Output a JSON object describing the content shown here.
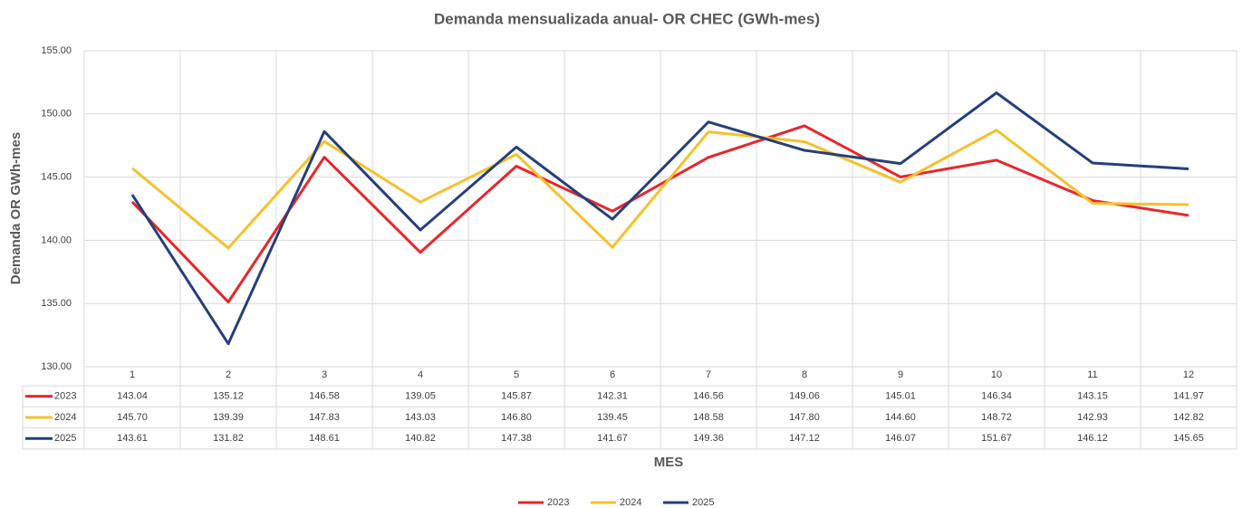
{
  "chart_data": {
    "type": "line",
    "title": "Demanda mensualizada anual- OR CHEC (GWh-mes)",
    "x_label": "MES",
    "y_label": "Demanda OR GWh-mes",
    "categories": [
      "1",
      "2",
      "3",
      "4",
      "5",
      "6",
      "7",
      "8",
      "9",
      "10",
      "11",
      "12"
    ],
    "series": [
      {
        "name": "2023",
        "color": "#e8262b",
        "values": [
          143.04,
          135.12,
          146.58,
          139.05,
          145.87,
          142.31,
          146.56,
          149.06,
          145.01,
          146.34,
          143.15,
          141.97
        ],
        "value_labels": [
          "143.04",
          "135.12",
          "146.58",
          "139.05",
          "145.87",
          "142.31",
          "146.56",
          "149.06",
          "145.01",
          "146.34",
          "143.15",
          "141.97"
        ]
      },
      {
        "name": "2024",
        "color": "#f5c12c",
        "values": [
          145.7,
          139.39,
          147.83,
          143.03,
          146.8,
          139.45,
          148.58,
          147.8,
          144.6,
          148.72,
          142.93,
          142.82
        ],
        "value_labels": [
          "145.70",
          "139.39",
          "147.83",
          "143.03",
          "146.80",
          "139.45",
          "148.58",
          "147.80",
          "144.60",
          "148.72",
          "142.93",
          "142.82"
        ]
      },
      {
        "name": "2025",
        "color": "#24407a",
        "values": [
          143.61,
          131.82,
          148.61,
          140.82,
          147.38,
          141.67,
          149.36,
          147.12,
          146.07,
          151.67,
          146.12,
          145.65
        ],
        "value_labels": [
          "143.61",
          "131.82",
          "148.61",
          "140.82",
          "147.38",
          "141.67",
          "149.36",
          "147.12",
          "146.07",
          "151.67",
          "146.12",
          "145.65"
        ]
      }
    ],
    "ylim": [
      130,
      155
    ],
    "yticks": [
      {
        "value": 130,
        "label": "130.00"
      },
      {
        "value": 135,
        "label": "135.00"
      },
      {
        "value": 140,
        "label": "140.00"
      },
      {
        "value": 145,
        "label": "145.00"
      },
      {
        "value": 150,
        "label": "150.00"
      },
      {
        "value": 155,
        "label": "155.00"
      }
    ],
    "grid": true,
    "legend": "bottom"
  }
}
